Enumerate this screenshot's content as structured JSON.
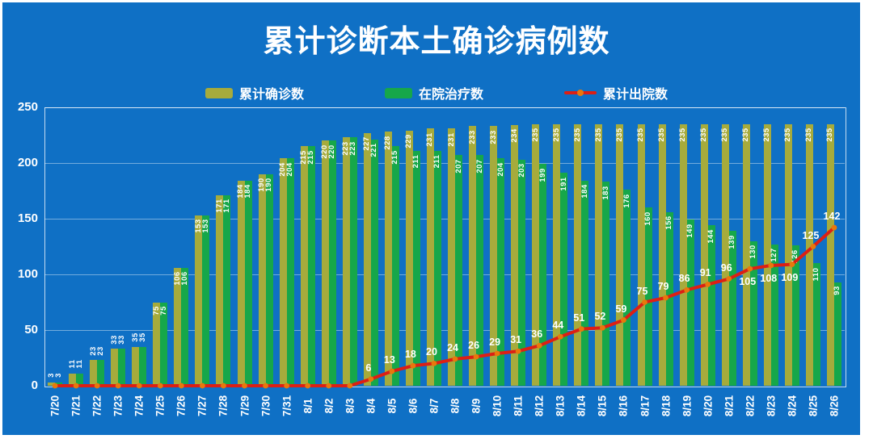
{
  "title": "累计诊断本土确诊病例数",
  "y_axis": {
    "tick_labels": [
      "0",
      "50",
      "100",
      "150",
      "200",
      "250"
    ]
  },
  "chart_data": {
    "type": "bar",
    "title": "累计诊断本土确诊病例数",
    "categories": [
      "7/20",
      "7/21",
      "7/22",
      "7/23",
      "7/24",
      "7/25",
      "7/26",
      "7/27",
      "7/28",
      "7/29",
      "7/30",
      "7/31",
      "8/1",
      "8/2",
      "8/3",
      "8/4",
      "8/5",
      "8/6",
      "8/7",
      "8/8",
      "8/9",
      "8/10",
      "8/11",
      "8/12",
      "8/13",
      "8/14",
      "8/15",
      "8/16",
      "8/17",
      "8/18",
      "8/19",
      "8/20",
      "8/21",
      "8/22",
      "8/23",
      "8/24",
      "8/25",
      "8/26"
    ],
    "series": [
      {
        "name": "累计确诊数",
        "type": "bar",
        "color": "#A6AB3C",
        "values": [
          3,
          11,
          23,
          33,
          35,
          75,
          106,
          153,
          171,
          184,
          190,
          204,
          215,
          220,
          223,
          227,
          228,
          229,
          231,
          231,
          233,
          233,
          234,
          235,
          235,
          235,
          235,
          235,
          235,
          235,
          235,
          235,
          235,
          235,
          235,
          235,
          235,
          235
        ]
      },
      {
        "name": "在院治疗数",
        "type": "bar",
        "color": "#16A74A",
        "values": [
          3,
          11,
          23,
          33,
          35,
          75,
          106,
          153,
          171,
          184,
          190,
          204,
          215,
          220,
          223,
          221,
          215,
          211,
          211,
          207,
          207,
          204,
          203,
          199,
          191,
          184,
          183,
          176,
          160,
          156,
          149,
          144,
          139,
          130,
          127,
          126,
          110,
          93
        ]
      },
      {
        "name": "累计出院数",
        "type": "line",
        "color": "#DD1F14",
        "marker_color": "#E8780C",
        "values": [
          0,
          0,
          0,
          0,
          0,
          0,
          0,
          0,
          0,
          0,
          0,
          0,
          0,
          0,
          0,
          6,
          13,
          18,
          20,
          24,
          26,
          29,
          31,
          36,
          44,
          51,
          52,
          59,
          75,
          79,
          86,
          91,
          96,
          105,
          108,
          109,
          125,
          142
        ]
      }
    ],
    "ylim": [
      0,
      250
    ],
    "yticks": [
      0,
      50,
      100,
      150,
      200,
      250
    ],
    "grid": true,
    "legend_position": "top",
    "line_labels_below_indices": [
      33,
      34,
      35
    ],
    "background_color": "#0F70C5",
    "text_color": "#FFFFFF"
  }
}
